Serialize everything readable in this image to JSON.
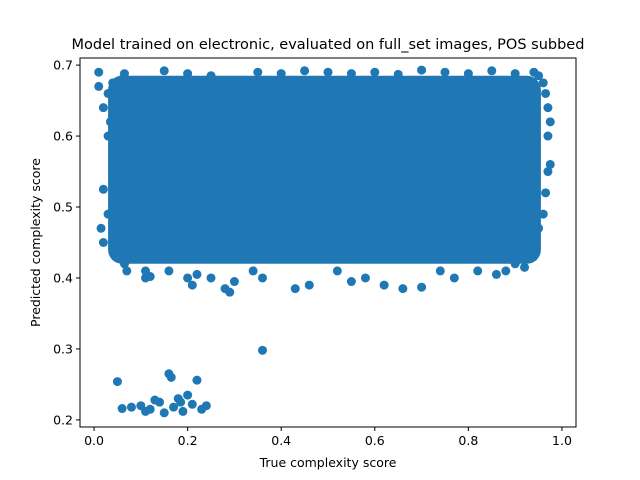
{
  "chart_data": {
    "type": "scatter",
    "title": "Model trained on electronic, evaluated on full_set images, POS subbed",
    "xlabel": "True complexity score",
    "ylabel": "Predicted complexity score",
    "xlim": [
      -0.03,
      1.03
    ],
    "ylim": [
      0.19,
      0.71
    ],
    "xticks": [
      0.0,
      0.2,
      0.4,
      0.6,
      0.8,
      1.0
    ],
    "xtick_labels": [
      "0.0",
      "0.2",
      "0.4",
      "0.6",
      "0.8",
      "1.0"
    ],
    "yticks": [
      0.2,
      0.3,
      0.4,
      0.5,
      0.6,
      0.7
    ],
    "ytick_labels": [
      "0.2",
      "0.3",
      "0.4",
      "0.5",
      "0.6",
      "0.7"
    ],
    "grid": false,
    "marker_color": "#1f77b4",
    "points": [
      [
        0.01,
        0.69
      ],
      [
        0.01,
        0.67
      ],
      [
        0.02,
        0.525
      ],
      [
        0.015,
        0.47
      ],
      [
        0.02,
        0.45
      ],
      [
        0.02,
        0.64
      ],
      [
        0.03,
        0.66
      ],
      [
        0.035,
        0.62
      ],
      [
        0.03,
        0.6
      ],
      [
        0.03,
        0.49
      ],
      [
        0.04,
        0.455
      ],
      [
        0.04,
        0.44
      ],
      [
        0.04,
        0.675
      ],
      [
        0.05,
        0.44
      ],
      [
        0.05,
        0.43
      ],
      [
        0.06,
        0.43
      ],
      [
        0.065,
        0.42
      ],
      [
        0.065,
        0.688
      ],
      [
        0.07,
        0.41
      ],
      [
        0.06,
        0.68
      ],
      [
        0.11,
        0.41
      ],
      [
        0.11,
        0.4
      ],
      [
        0.12,
        0.402
      ],
      [
        0.16,
        0.41
      ],
      [
        0.2,
        0.4
      ],
      [
        0.21,
        0.39
      ],
      [
        0.22,
        0.405
      ],
      [
        0.25,
        0.4
      ],
      [
        0.28,
        0.385
      ],
      [
        0.29,
        0.38
      ],
      [
        0.3,
        0.395
      ],
      [
        0.34,
        0.41
      ],
      [
        0.36,
        0.4
      ],
      [
        0.43,
        0.385
      ],
      [
        0.46,
        0.39
      ],
      [
        0.52,
        0.41
      ],
      [
        0.55,
        0.395
      ],
      [
        0.58,
        0.4
      ],
      [
        0.62,
        0.39
      ],
      [
        0.66,
        0.385
      ],
      [
        0.7,
        0.387
      ],
      [
        0.74,
        0.41
      ],
      [
        0.77,
        0.4
      ],
      [
        0.82,
        0.41
      ],
      [
        0.86,
        0.405
      ],
      [
        0.88,
        0.41
      ],
      [
        0.9,
        0.42
      ],
      [
        0.92,
        0.415
      ],
      [
        0.95,
        0.47
      ],
      [
        0.96,
        0.49
      ],
      [
        0.965,
        0.52
      ],
      [
        0.97,
        0.55
      ],
      [
        0.975,
        0.56
      ],
      [
        0.97,
        0.6
      ],
      [
        0.975,
        0.62
      ],
      [
        0.97,
        0.64
      ],
      [
        0.965,
        0.66
      ],
      [
        0.96,
        0.675
      ],
      [
        0.95,
        0.685
      ],
      [
        0.94,
        0.69
      ],
      [
        0.15,
        0.692
      ],
      [
        0.2,
        0.688
      ],
      [
        0.25,
        0.685
      ],
      [
        0.35,
        0.69
      ],
      [
        0.4,
        0.688
      ],
      [
        0.45,
        0.692
      ],
      [
        0.5,
        0.69
      ],
      [
        0.55,
        0.688
      ],
      [
        0.6,
        0.69
      ],
      [
        0.65,
        0.687
      ],
      [
        0.7,
        0.693
      ],
      [
        0.75,
        0.69
      ],
      [
        0.8,
        0.688
      ],
      [
        0.85,
        0.692
      ],
      [
        0.9,
        0.688
      ],
      [
        0.36,
        0.298
      ],
      [
        0.05,
        0.254
      ],
      [
        0.06,
        0.216
      ],
      [
        0.16,
        0.265
      ],
      [
        0.165,
        0.26
      ],
      [
        0.22,
        0.256
      ],
      [
        0.18,
        0.23
      ],
      [
        0.2,
        0.235
      ],
      [
        0.1,
        0.22
      ],
      [
        0.12,
        0.215
      ],
      [
        0.14,
        0.225
      ],
      [
        0.15,
        0.21
      ],
      [
        0.17,
        0.218
      ],
      [
        0.19,
        0.212
      ],
      [
        0.21,
        0.222
      ],
      [
        0.23,
        0.215
      ],
      [
        0.24,
        0.22
      ],
      [
        0.13,
        0.228
      ],
      [
        0.08,
        0.218
      ],
      [
        0.11,
        0.212
      ],
      [
        0.185,
        0.225
      ]
    ]
  }
}
